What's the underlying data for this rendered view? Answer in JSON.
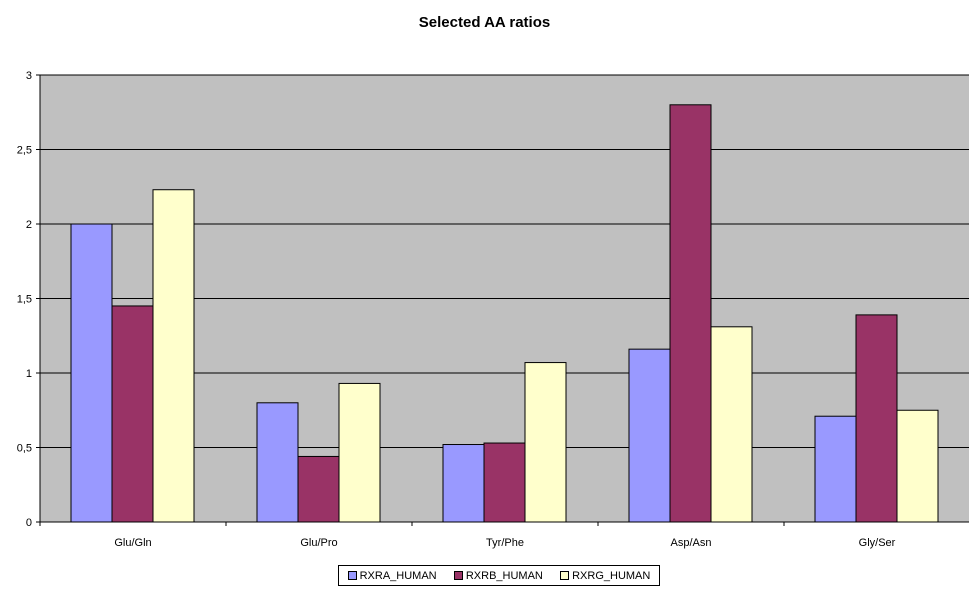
{
  "chart_data": {
    "type": "bar",
    "title": "Selected AA ratios",
    "xlabel": "",
    "ylabel": "",
    "categories": [
      "Glu/Gln",
      "Glu/Pro",
      "Tyr/Phe",
      "Asp/Asn",
      "Gly/Ser"
    ],
    "series": [
      {
        "name": "RXRA_HUMAN",
        "color": "#9999ff",
        "values": [
          2.0,
          0.8,
          0.52,
          1.16,
          0.71
        ]
      },
      {
        "name": "RXRB_HUMAN",
        "color": "#993366",
        "values": [
          1.45,
          0.44,
          0.53,
          2.8,
          1.39
        ]
      },
      {
        "name": "RXRG_HUMAN",
        "color": "#ffffcc",
        "values": [
          2.23,
          0.93,
          1.07,
          1.31,
          0.75
        ]
      }
    ],
    "ylim": [
      0,
      3
    ],
    "yticks": [
      0,
      0.5,
      1,
      1.5,
      2,
      2.5,
      3
    ],
    "ytick_labels": [
      "0",
      "0,5",
      "1",
      "1,5",
      "2",
      "2,5",
      "3"
    ],
    "grid": true,
    "plot_background": "#c0c0c0",
    "legend_position": "bottom"
  }
}
